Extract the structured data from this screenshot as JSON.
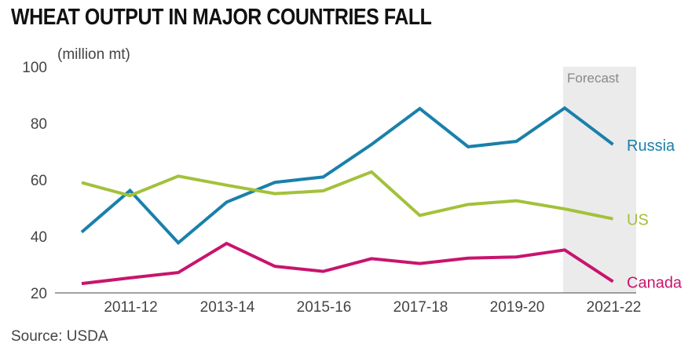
{
  "title": "WHEAT OUTPUT IN MAJOR COUNTRIES FALL",
  "source": "Source: USDA",
  "chart_data": {
    "type": "line",
    "title": "WHEAT OUTPUT IN MAJOR COUNTRIES FALL",
    "ylabel": "(million mt)",
    "xlabel": "",
    "ylim": [
      20,
      100
    ],
    "yticks": [
      20,
      40,
      60,
      80,
      100
    ],
    "x": [
      "2010-11",
      "2011-12",
      "2012-13",
      "2013-14",
      "2014-15",
      "2015-16",
      "2016-17",
      "2017-18",
      "2018-19",
      "2019-20",
      "2020-21",
      "2021-22"
    ],
    "xtick_labels": [
      "2011-12",
      "2013-14",
      "2015-16",
      "2017-18",
      "2019-20",
      "2021-22"
    ],
    "forecast_label": "Forecast",
    "forecast_from": "2020-21",
    "grid": false,
    "series": [
      {
        "name": "Russia",
        "color": "#1a80aa",
        "values": [
          41.5,
          56.2,
          37.7,
          52.1,
          59.1,
          61.0,
          72.5,
          85.2,
          71.7,
          73.6,
          85.4,
          72.5
        ]
      },
      {
        "name": "US",
        "color": "#a3c13a",
        "values": [
          59.0,
          54.4,
          61.3,
          58.1,
          55.1,
          56.1,
          62.8,
          47.4,
          51.3,
          52.6,
          49.7,
          46.2
        ]
      },
      {
        "name": "Canada",
        "color": "#c8146e",
        "values": [
          23.3,
          25.3,
          27.2,
          37.5,
          29.4,
          27.6,
          32.1,
          30.4,
          32.3,
          32.7,
          35.2,
          24.0
        ]
      }
    ]
  }
}
